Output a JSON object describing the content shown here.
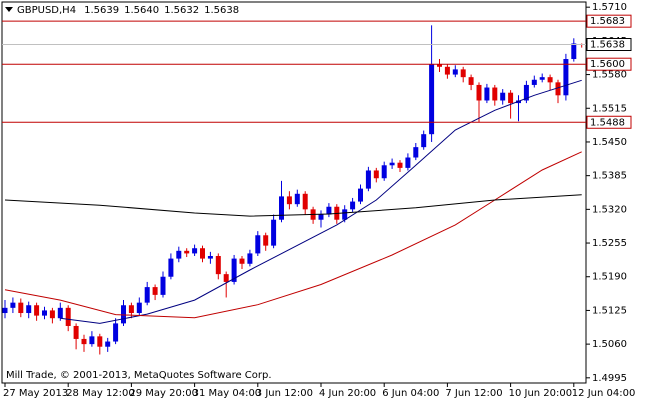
{
  "chart_data": {
    "type": "candlestick",
    "symbol": "GBPUSD,H4",
    "header_prices": [
      "1.5639",
      "1.5640",
      "1.5632",
      "1.5638"
    ],
    "footer": "Mill Trade, © 2001-2013, MetaQuotes Software Corp.",
    "categories": [
      "27 May 2013",
      null,
      null,
      null,
      null,
      null,
      null,
      null,
      "28 May 12:00",
      null,
      null,
      null,
      null,
      null,
      null,
      null,
      "29 May 20:00",
      null,
      null,
      null,
      null,
      null,
      null,
      null,
      "31 May 04:00",
      null,
      null,
      null,
      null,
      null,
      null,
      null,
      "3 Jun 12:00",
      null,
      null,
      null,
      null,
      null,
      null,
      null,
      "4 Jun 20:00",
      null,
      null,
      null,
      null,
      null,
      null,
      null,
      "6 Jun 04:00",
      null,
      null,
      null,
      null,
      null,
      null,
      null,
      "7 Jun 12:00",
      null,
      null,
      null,
      null,
      null,
      null,
      null,
      "10 Jun 20:00",
      null,
      null,
      null,
      null,
      null,
      null,
      null,
      "12 Jun 04:00",
      null
    ],
    "ohlc": [
      [
        1.512,
        1.5145,
        1.511,
        1.513
      ],
      [
        1.513,
        1.515,
        1.512,
        1.514
      ],
      [
        1.514,
        1.5148,
        1.5112,
        1.512
      ],
      [
        1.512,
        1.5142,
        1.511,
        1.5135
      ],
      [
        1.5135,
        1.514,
        1.5105,
        1.5115
      ],
      [
        1.5115,
        1.5132,
        1.5108,
        1.5125
      ],
      [
        1.5125,
        1.513,
        1.51,
        1.511
      ],
      [
        1.511,
        1.514,
        1.5105,
        1.513
      ],
      [
        1.513,
        1.5135,
        1.5085,
        1.5095
      ],
      [
        1.5095,
        1.51,
        1.505,
        1.507
      ],
      [
        1.507,
        1.5078,
        1.5045,
        1.506
      ],
      [
        1.506,
        1.5085,
        1.5055,
        1.5075
      ],
      [
        1.5075,
        1.508,
        1.504,
        1.5055
      ],
      [
        1.5055,
        1.5072,
        1.5045,
        1.5065
      ],
      [
        1.5065,
        1.511,
        1.506,
        1.51
      ],
      [
        1.51,
        1.5145,
        1.5095,
        1.5135
      ],
      [
        1.5135,
        1.514,
        1.511,
        1.512
      ],
      [
        1.512,
        1.515,
        1.5115,
        1.514
      ],
      [
        1.514,
        1.518,
        1.5135,
        1.517
      ],
      [
        1.517,
        1.5175,
        1.5145,
        1.5155
      ],
      [
        1.5155,
        1.52,
        1.515,
        1.519
      ],
      [
        1.519,
        1.5235,
        1.5185,
        1.5225
      ],
      [
        1.5225,
        1.5248,
        1.5218,
        1.524
      ],
      [
        1.524,
        1.5245,
        1.5228,
        1.5235
      ],
      [
        1.5235,
        1.5252,
        1.523,
        1.5245
      ],
      [
        1.5245,
        1.525,
        1.5218,
        1.5225
      ],
      [
        1.5225,
        1.5238,
        1.5215,
        1.523
      ],
      [
        1.523,
        1.5235,
        1.5185,
        1.5195
      ],
      [
        1.5195,
        1.52,
        1.515,
        1.518
      ],
      [
        1.518,
        1.5232,
        1.5175,
        1.5225
      ],
      [
        1.5225,
        1.523,
        1.5205,
        1.5215
      ],
      [
        1.5215,
        1.5242,
        1.521,
        1.5235
      ],
      [
        1.5235,
        1.5278,
        1.523,
        1.527
      ],
      [
        1.527,
        1.5275,
        1.524,
        1.525
      ],
      [
        1.525,
        1.531,
        1.5245,
        1.53
      ],
      [
        1.53,
        1.5375,
        1.5295,
        1.5345
      ],
      [
        1.5345,
        1.5355,
        1.532,
        1.533
      ],
      [
        1.533,
        1.5358,
        1.5325,
        1.535
      ],
      [
        1.535,
        1.5355,
        1.531,
        1.532
      ],
      [
        1.532,
        1.5325,
        1.5292,
        1.53
      ],
      [
        1.53,
        1.5318,
        1.5285,
        1.531
      ],
      [
        1.531,
        1.5332,
        1.5305,
        1.5325
      ],
      [
        1.5325,
        1.533,
        1.5292,
        1.53
      ],
      [
        1.53,
        1.5328,
        1.5295,
        1.532
      ],
      [
        1.532,
        1.5342,
        1.5315,
        1.5335
      ],
      [
        1.5335,
        1.5368,
        1.533,
        1.536
      ],
      [
        1.536,
        1.5402,
        1.5355,
        1.5395
      ],
      [
        1.5395,
        1.54,
        1.5372,
        1.538
      ],
      [
        1.538,
        1.5412,
        1.5375,
        1.5405
      ],
      [
        1.5405,
        1.5418,
        1.5398,
        1.541
      ],
      [
        1.541,
        1.5415,
        1.5392,
        1.54
      ],
      [
        1.54,
        1.5428,
        1.5395,
        1.542
      ],
      [
        1.542,
        1.5448,
        1.5415,
        1.544
      ],
      [
        1.544,
        1.5472,
        1.5435,
        1.5465
      ],
      [
        1.5465,
        1.5675,
        1.545,
        1.56
      ],
      [
        1.56,
        1.561,
        1.5585,
        1.5595
      ],
      [
        1.5595,
        1.56,
        1.5572,
        1.558
      ],
      [
        1.558,
        1.5598,
        1.5575,
        1.559
      ],
      [
        1.559,
        1.5595,
        1.5565,
        1.5575
      ],
      [
        1.5575,
        1.558,
        1.555,
        1.556
      ],
      [
        1.556,
        1.5565,
        1.5488,
        1.553
      ],
      [
        1.553,
        1.5562,
        1.5525,
        1.5555
      ],
      [
        1.5555,
        1.556,
        1.552,
        1.553
      ],
      [
        1.553,
        1.5552,
        1.5522,
        1.5545
      ],
      [
        1.5545,
        1.555,
        1.5495,
        1.5525
      ],
      [
        1.5525,
        1.554,
        1.549,
        1.553
      ],
      [
        1.553,
        1.5568,
        1.5525,
        1.556
      ],
      [
        1.556,
        1.5578,
        1.5555,
        1.557
      ],
      [
        1.557,
        1.5582,
        1.5565,
        1.5575
      ],
      [
        1.5575,
        1.558,
        1.555,
        1.5565
      ],
      [
        1.5565,
        1.557,
        1.5525,
        1.554
      ],
      [
        1.554,
        1.562,
        1.553,
        1.561
      ],
      [
        1.561,
        1.565,
        1.5605,
        1.564
      ],
      [
        1.5639,
        1.564,
        1.5632,
        1.5638
      ]
    ],
    "up_color": "#0000e0",
    "down_color": "#e00000",
    "moving_averages": [
      {
        "color": "#000080",
        "x": [
          7,
          12,
          18,
          24,
          31,
          42,
          47,
          52,
          57,
          62,
          67,
          73
        ],
        "values": [
          1.511,
          1.51,
          1.5118,
          1.5145,
          1.5203,
          1.529,
          1.5338,
          1.5405,
          1.5473,
          1.5511,
          1.554,
          1.5569
        ]
      },
      {
        "color": "#c00000",
        "x": [
          0,
          7,
          14,
          24,
          32,
          40,
          49,
          57,
          62,
          68,
          73
        ],
        "values": [
          1.5165,
          1.5145,
          1.5117,
          1.5111,
          1.5136,
          1.5175,
          1.5232,
          1.529,
          1.5338,
          1.5396,
          1.5431
        ]
      },
      {
        "color": "#000000",
        "x": [
          0,
          12,
          24,
          31,
          41,
          52,
          62,
          73
        ],
        "values": [
          1.5338,
          1.5328,
          1.5313,
          1.5307,
          1.5311,
          1.5323,
          1.5338,
          1.5348
        ]
      }
    ],
    "levels": [
      {
        "value": 1.5683,
        "label": "1.5683"
      },
      {
        "value": 1.56,
        "label": "1.5600"
      },
      {
        "value": 1.5488,
        "label": "1.5488"
      }
    ],
    "level_color": "#c00000",
    "current_price": {
      "value": 1.5638,
      "label": "1.5638"
    },
    "ylim": [
      1.4985,
      1.572
    ],
    "yticks": [
      {
        "value": 1.4995,
        "label": "1.4995"
      },
      {
        "value": 1.506,
        "label": "1.5060"
      },
      {
        "value": 1.5125,
        "label": "1.5125"
      },
      {
        "value": 1.519,
        "label": "1.5190"
      },
      {
        "value": 1.5255,
        "label": "1.5255"
      },
      {
        "value": 1.532,
        "label": "1.5320"
      },
      {
        "value": 1.5385,
        "label": "1.5385"
      },
      {
        "value": 1.545,
        "label": "1.5450"
      },
      {
        "value": 1.5515,
        "label": "1.5515"
      },
      {
        "value": 1.558,
        "label": "1.5580"
      },
      {
        "value": 1.5645,
        "label": "1.5645"
      },
      {
        "value": 1.571,
        "label": "1.5710"
      }
    ]
  }
}
